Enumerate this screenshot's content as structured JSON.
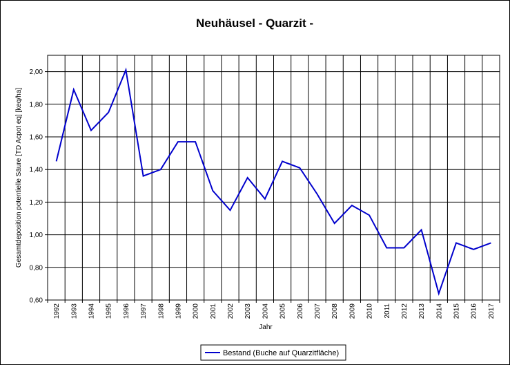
{
  "chart_data": {
    "type": "line",
    "title": "Neuhäusel - Quarzit -",
    "xlabel": "Jahr",
    "ylabel": "Gesamtdeposition potentielle Säure [TD Acpot eq] [keq/ha]",
    "ylim": [
      0.6,
      2.1
    ],
    "yticks": [
      "0,60",
      "0,80",
      "1,00",
      "1,20",
      "1,40",
      "1,60",
      "1,80",
      "2,00"
    ],
    "ytick_values": [
      0.6,
      0.8,
      1.0,
      1.2,
      1.4,
      1.6,
      1.8,
      2.0
    ],
    "categories": [
      "1992",
      "1993",
      "1994",
      "1995",
      "1996",
      "1997",
      "1998",
      "1999",
      "2000",
      "2001",
      "2002",
      "2003",
      "2004",
      "2005",
      "2006",
      "2007",
      "2008",
      "2009",
      "2010",
      "2011",
      "2012",
      "2013",
      "2014",
      "2015",
      "2016",
      "2017"
    ],
    "grid": true,
    "legend_position": "bottom-center",
    "series": [
      {
        "name": "Bestand (Buche auf Quarzitfläche)",
        "color": "#0000cc",
        "values": [
          1.45,
          1.89,
          1.64,
          1.75,
          2.01,
          1.36,
          1.4,
          1.57,
          1.57,
          1.27,
          1.15,
          1.35,
          1.22,
          1.45,
          1.41,
          1.25,
          1.07,
          1.18,
          1.12,
          0.92,
          0.92,
          1.03,
          0.64,
          0.95,
          0.91,
          0.95
        ]
      }
    ]
  }
}
